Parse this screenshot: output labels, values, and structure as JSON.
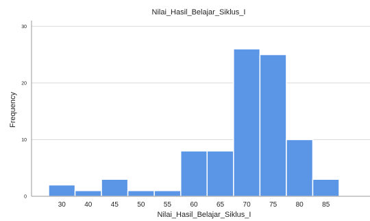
{
  "chart_data": {
    "type": "bar",
    "title": "Nilai_Hasil_Belajar_Siklus_I",
    "xlabel": "Nilai_Hasil_Belajar_Siklus_I",
    "ylabel": "Frequency",
    "categories": [
      "30",
      "40",
      "45",
      "50",
      "55",
      "60",
      "65",
      "70",
      "75",
      "80",
      "85"
    ],
    "values": [
      2,
      1,
      3,
      1,
      1,
      8,
      8,
      26,
      25,
      10,
      3
    ],
    "ylim": [
      0,
      31
    ],
    "yticks": [
      "0",
      "10",
      "20",
      "30"
    ],
    "grid": true,
    "colors": {
      "bar": "#5a95e6",
      "bar_edge": "#ffffff",
      "grid": "#d9d9d9",
      "axis": "#999999"
    }
  }
}
